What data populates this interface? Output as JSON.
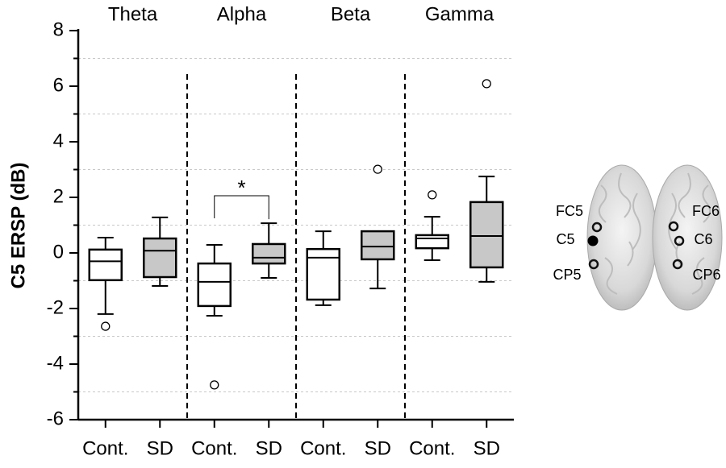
{
  "chart_data": {
    "type": "box",
    "ylabel": "C5 ERSP (dB)",
    "groups": [
      "Theta",
      "Alpha",
      "Beta",
      "Gamma"
    ],
    "categories": [
      "Cont.",
      "SD",
      "Cont.",
      "SD",
      "Cont.",
      "SD",
      "Cont.",
      "SD"
    ],
    "boxes": [
      {
        "whislo": -2.2,
        "q1": -0.98,
        "med": -0.3,
        "q3": 0.12,
        "whishi": 0.55,
        "fliers": [
          -2.64
        ],
        "color": "#ffffff"
      },
      {
        "whislo": -1.19,
        "q1": -0.87,
        "med": 0.08,
        "q3": 0.52,
        "whishi": 1.28,
        "fliers": [],
        "color": "#c8c8c8"
      },
      {
        "whislo": -2.26,
        "q1": -1.91,
        "med": -1.04,
        "q3": -0.38,
        "whishi": 0.29,
        "fliers": [
          -4.75
        ],
        "color": "#ffffff"
      },
      {
        "whislo": -0.9,
        "q1": -0.38,
        "med": -0.17,
        "q3": 0.32,
        "whishi": 1.07,
        "fliers": [],
        "color": "#c8c8c8"
      },
      {
        "whislo": -1.88,
        "q1": -1.68,
        "med": -0.17,
        "q3": 0.14,
        "whishi": 0.78,
        "fliers": [],
        "color": "#ffffff"
      },
      {
        "whislo": -1.28,
        "q1": -0.23,
        "med": 0.23,
        "q3": 0.78,
        "whishi": 0.78,
        "fliers": [
          3.01
        ],
        "color": "#c8c8c8"
      },
      {
        "whislo": -0.26,
        "q1": 0.17,
        "med": 0.52,
        "q3": 0.64,
        "whishi": 1.3,
        "fliers": [
          2.09
        ],
        "color": "#ffffff"
      },
      {
        "whislo": -1.04,
        "q1": -0.52,
        "med": 0.61,
        "q3": 1.83,
        "whishi": 2.75,
        "fliers": [
          6.09
        ],
        "color": "#c8c8c8"
      }
    ],
    "ylim": [
      -6,
      8
    ],
    "yticks": [
      -6,
      -4,
      -2,
      0,
      2,
      4,
      6,
      8
    ],
    "yminor": [
      -5,
      -3,
      -1,
      1,
      3,
      5,
      7
    ],
    "grid": true,
    "annotation": "*"
  },
  "electrodes": [
    "FC5",
    "C5",
    "CP5",
    "FC6",
    "C6",
    "CP6"
  ]
}
